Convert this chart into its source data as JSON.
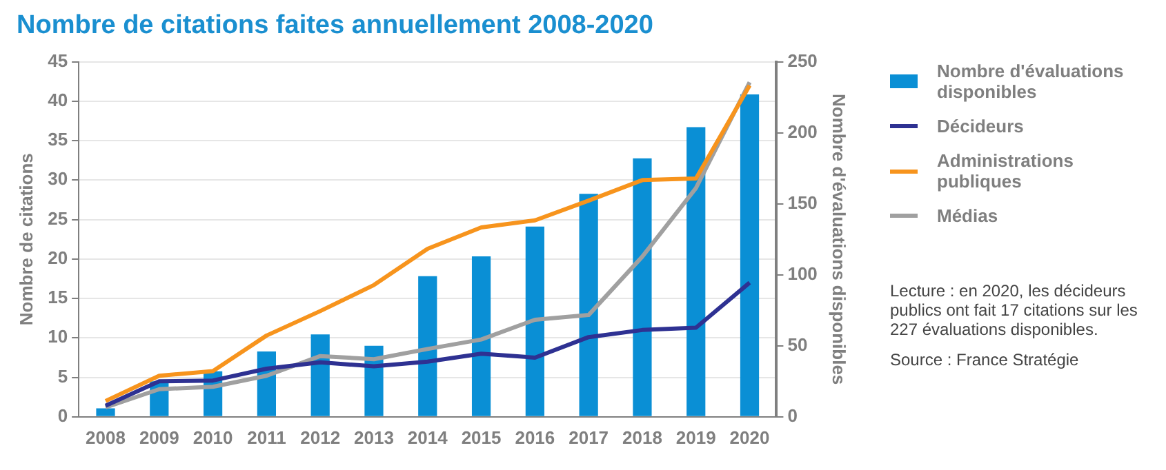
{
  "chart_data": {
    "type": "bar",
    "title": "Nombre de citations faites annuellement 2008-2020",
    "ylabel": "Nombre de citations",
    "y2label": "Nombre d'évaluations disponibles",
    "categories": [
      "2008",
      "2009",
      "2010",
      "2011",
      "2012",
      "2013",
      "2014",
      "2015",
      "2016",
      "2017",
      "2018",
      "2019",
      "2020"
    ],
    "series": [
      {
        "name": "Nombre d'évaluations disponibles",
        "axis": "y2",
        "color": "#0a8fd5",
        "values": [
          6,
          25,
          32,
          46,
          58,
          50,
          99,
          113,
          134,
          157,
          182,
          204,
          227
        ]
      },
      {
        "name": "Décideurs",
        "type": "line",
        "color": "#2e3192",
        "values": [
          1.4,
          4.5,
          4.6,
          6.1,
          6.9,
          6.4,
          7.0,
          8.0,
          7.5,
          10.1,
          11.0,
          11.3,
          17
        ]
      },
      {
        "name": "Administrations publiques",
        "type": "line",
        "color": "#f7941d",
        "values": [
          2.0,
          5.2,
          5.8,
          10.3,
          13.4,
          16.7,
          21.3,
          24.0,
          24.9,
          27.4,
          30.0,
          30.2,
          42.0
        ]
      },
      {
        "name": "Médias",
        "type": "line",
        "color": "#a0a0a0",
        "values": [
          1.2,
          3.5,
          3.8,
          5.2,
          7.7,
          7.3,
          8.6,
          9.8,
          12.3,
          12.9,
          20.3,
          29.0,
          42.4
        ]
      }
    ],
    "ylim": [
      0,
      45
    ],
    "yticks": [
      0,
      5,
      10,
      15,
      20,
      25,
      30,
      35,
      40,
      45
    ],
    "y2lim": [
      0,
      250
    ],
    "y2ticks": [
      0,
      50,
      100,
      150,
      200,
      250
    ],
    "grid": "y",
    "legend": "right",
    "marker": "none",
    "line_style": "solid",
    "annotations": [
      "Lecture : en 2020, les décideurs publics ont fait 17 citations sur les 227 évaluations disponibles.",
      "Source : France Stratégie"
    ]
  }
}
